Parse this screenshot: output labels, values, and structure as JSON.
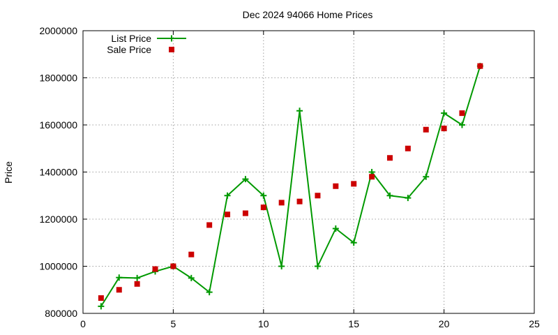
{
  "chart_data": {
    "type": "line",
    "title": "Dec 2024 94066 Home Prices",
    "xlabel": "",
    "ylabel": "Price",
    "xlim": [
      0,
      25
    ],
    "ylim": [
      800000,
      2000000
    ],
    "x_ticks": [
      0,
      5,
      10,
      15,
      20,
      25
    ],
    "x_tick_labels": [
      "0",
      "5",
      "10",
      "15",
      "20",
      "25"
    ],
    "y_ticks": [
      800000,
      1000000,
      1200000,
      1400000,
      1600000,
      1800000,
      2000000
    ],
    "y_tick_labels": [
      "800000",
      "1000000",
      "1200000",
      "1400000",
      "1600000",
      "1800000",
      "2000000"
    ],
    "grid": true,
    "legend_position": "top-left",
    "series": [
      {
        "name": "List Price",
        "style": "line-with-plus-markers",
        "color": "#009900",
        "x": [
          1,
          2,
          3,
          4,
          5,
          6,
          7,
          8,
          9,
          10,
          11,
          12,
          13,
          14,
          15,
          16,
          17,
          18,
          19,
          20,
          21,
          22
        ],
        "y": [
          830000,
          952000,
          950000,
          978000,
          1000000,
          950000,
          890000,
          1300000,
          1370000,
          1300000,
          1000000,
          1660000,
          1000000,
          1160000,
          1100000,
          1400000,
          1300000,
          1290000,
          1380000,
          1650000,
          1600000,
          1850000
        ]
      },
      {
        "name": "Sale Price",
        "style": "square-markers",
        "color": "#cc0000",
        "x": [
          1,
          2,
          3,
          4,
          5,
          6,
          7,
          8,
          9,
          10,
          11,
          12,
          13,
          14,
          15,
          16,
          17,
          18,
          19,
          20,
          21,
          22
        ],
        "y": [
          865000,
          900000,
          925000,
          988000,
          1000000,
          1050000,
          1175000,
          1220000,
          1225000,
          1250000,
          1270000,
          1275000,
          1300000,
          1340000,
          1350000,
          1380000,
          1460000,
          1500000,
          1580000,
          1585000,
          1650000,
          1850000
        ]
      }
    ]
  }
}
